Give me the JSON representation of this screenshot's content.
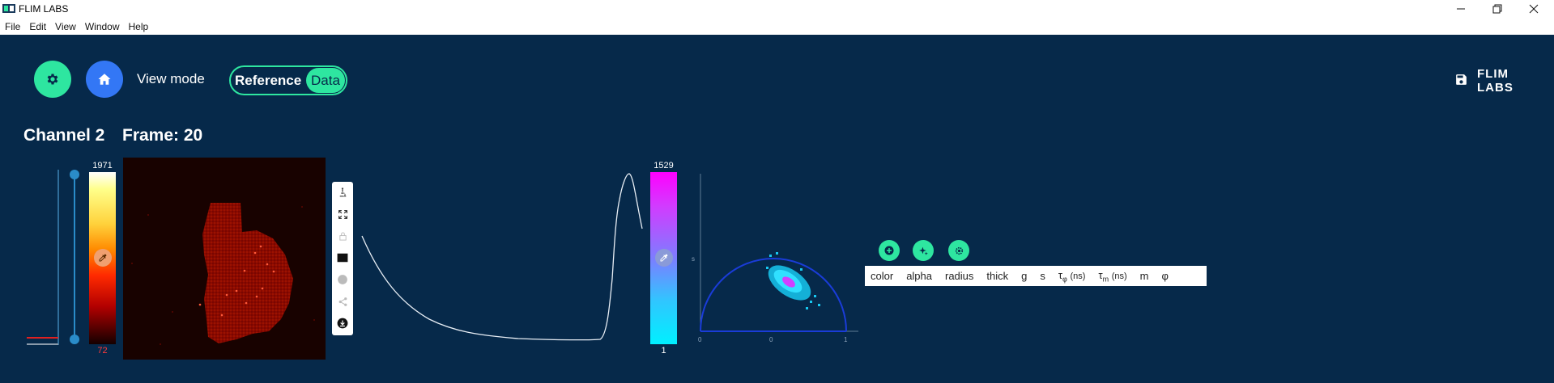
{
  "window": {
    "title": "FLIM LABS",
    "controls": {
      "minimize": "—",
      "maximize": "❐",
      "close": "✕"
    }
  },
  "menu": {
    "items": [
      "File",
      "Edit",
      "View",
      "Window",
      "Help"
    ]
  },
  "toolbar_top": {
    "settings_icon": "gear-icon",
    "home_icon": "home-icon",
    "view_mode_label": "View mode",
    "toggle": {
      "left_label": "Reference",
      "right_label": "Data",
      "selected": "Data"
    }
  },
  "logo_text": "FLIM LABS",
  "heading": {
    "channel": "Channel 2",
    "frame": "Frame: 20"
  },
  "intensity_colorbar": {
    "max_label": "1971",
    "min_label": "72"
  },
  "phasor_colorbar": {
    "max_label": "1529",
    "min_label": "1"
  },
  "phasor_axes": {
    "x_ticks": [
      "0",
      "0",
      "1"
    ],
    "y_label": "s"
  },
  "image_tools": [
    "microscope-icon",
    "fullscreen-icon",
    "lock-icon",
    "rectangle-icon",
    "circle-icon",
    "share-icon",
    "download-icon"
  ],
  "table_header": {
    "color": "color",
    "alpha": "alpha",
    "radius": "radius",
    "thick": "thick",
    "g": "g",
    "s": "s",
    "tau_phi_symbol": "τ",
    "tau_phi_sub": "φ",
    "tau_phi_unit": "(ns)",
    "tau_m_symbol": "τ",
    "tau_m_sub": "m",
    "tau_m_unit": "(ns)",
    "m": "m",
    "phi": "φ"
  },
  "colors": {
    "background": "#06294a",
    "accent": "#2ee6a0",
    "home": "#3377f5"
  }
}
